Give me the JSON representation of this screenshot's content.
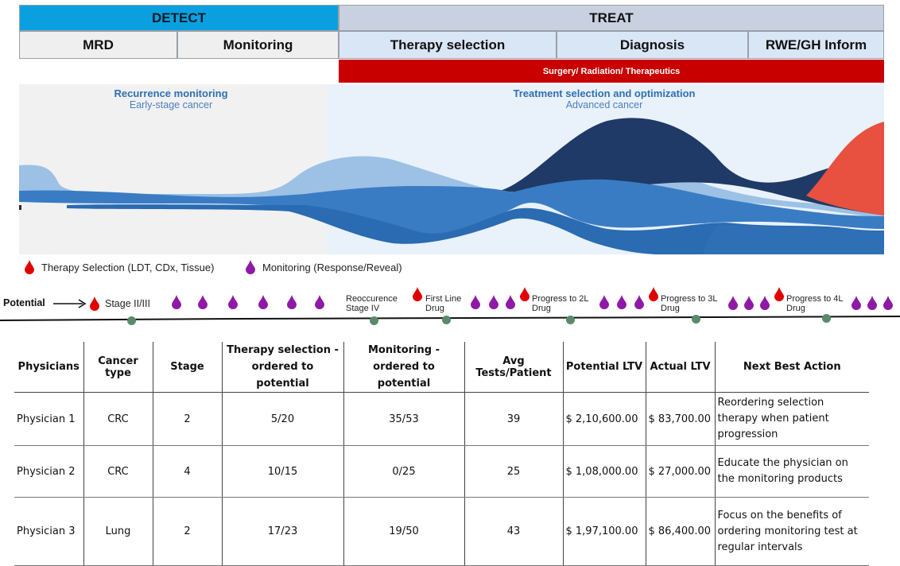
{
  "header": {
    "detect": "DETECT",
    "treat": "TREAT",
    "detect_sub": [
      "MRD",
      "Monitoring"
    ],
    "treat_sub": [
      "Therapy selection",
      "Diagnosis",
      "RWE/GH Inform"
    ],
    "red_bar": "Surgery/ Radiation/ Therapeutics"
  },
  "journey": {
    "left_title": "Recurrence monitoring",
    "left_sub": "Early-stage cancer",
    "right_title": "Treatment selection and optimization",
    "right_sub": "Advanced cancer"
  },
  "legend": {
    "red_label": "Therapy Selection (LDT, CDx, Tissue)",
    "purple_label": "Monitoring (Response/Reveal)"
  },
  "timeline": {
    "potential": "Potential",
    "stage23": "Stage II/III",
    "recurrence_l1": "Reoccurence",
    "recurrence_l2": "Stage IV",
    "first_l1": "First Line",
    "first_l2": "Drug",
    "p2_l1": "Progress to 2L",
    "p2_l2": "Drug",
    "p3_l1": "Progress to 3L",
    "p3_l2": "Drug",
    "p4_l1": "Progress to 4L",
    "p4_l2": "Drug"
  },
  "table": {
    "headers": [
      "Physicians",
      "Cancer type",
      "Stage",
      "Therapy selection - ordered to potential",
      "Monitoring - ordered to potential",
      "Avg Tests/Patient",
      "Potential LTV",
      "Actual LTV",
      "Next Best Action"
    ],
    "rows": [
      {
        "physician": "Physician 1",
        "cancer": "CRC",
        "stage": "2",
        "therapy": "5/20",
        "monitoring": "35/53",
        "avg": "39",
        "potential": "$ 2,10,600.00",
        "actual": "$ 83,700.00",
        "nba": "Reordering selection therapy when patient progression"
      },
      {
        "physician": "Physician 2",
        "cancer": "CRC",
        "stage": "4",
        "therapy": "10/15",
        "monitoring": "0/25",
        "avg": "25",
        "potential": "$ 1,08,000.00",
        "actual": "$ 27,000.00",
        "nba": "Educate the physician on the monitoring products"
      },
      {
        "physician": "Physician 3",
        "cancer": "Lung",
        "stage": "2",
        "therapy": "17/23",
        "monitoring": "19/50",
        "avg": "43",
        "potential": "$ 1,97,100.00",
        "actual": "$ 86,400.00",
        "nba": "Focus on the benefits of ordering monitoring test at regular intervals"
      }
    ]
  },
  "colors": {
    "detect": "#0aa0df",
    "treat": "#c9d0df",
    "red": "#c90000",
    "purple": "#8e1aa6",
    "drop_red": "#e00000",
    "dot_green": "#5a8a6a"
  }
}
